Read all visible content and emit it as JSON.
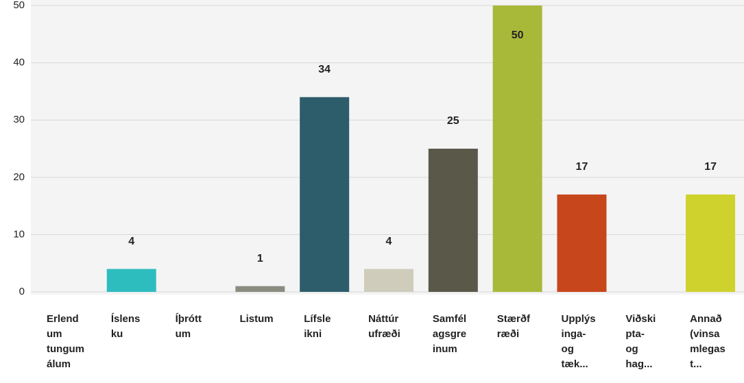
{
  "chart_data": {
    "type": "bar",
    "categories": [
      [
        "Erlend",
        "um",
        "tungum",
        "álum"
      ],
      [
        "Íslens",
        "ku"
      ],
      [
        "Íþrótt",
        "um"
      ],
      [
        "Listum"
      ],
      [
        "Lífsle",
        "ikni"
      ],
      [
        "Náttúr",
        "ufræði"
      ],
      [
        "Samfél",
        "agsgre",
        "inum"
      ],
      [
        "Stærðf",
        "ræði"
      ],
      [
        "Upplýs",
        "inga-",
        "og",
        "tæk..."
      ],
      [
        "Viðski",
        "pta-",
        "og",
        "hag..."
      ],
      [
        "Annað",
        "(vinsa",
        "mlegas",
        "t..."
      ]
    ],
    "values": [
      0,
      4,
      0,
      1,
      34,
      4,
      25,
      50,
      17,
      0,
      17
    ],
    "value_labels": [
      null,
      "4",
      null,
      "1",
      "34",
      "4",
      "25",
      "50",
      "17",
      null,
      "17"
    ],
    "colors": [
      "#999999",
      "#2ebdbf",
      "#999999",
      "#8a8c80",
      "#2d5d6b",
      "#cfccbc",
      "#5a5849",
      "#a8b93a",
      "#c8461c",
      "#999999",
      "#cfd22c"
    ],
    "ylim": [
      0,
      50
    ],
    "yticks": [
      0,
      10,
      20,
      30,
      40,
      50
    ],
    "grid": true
  }
}
